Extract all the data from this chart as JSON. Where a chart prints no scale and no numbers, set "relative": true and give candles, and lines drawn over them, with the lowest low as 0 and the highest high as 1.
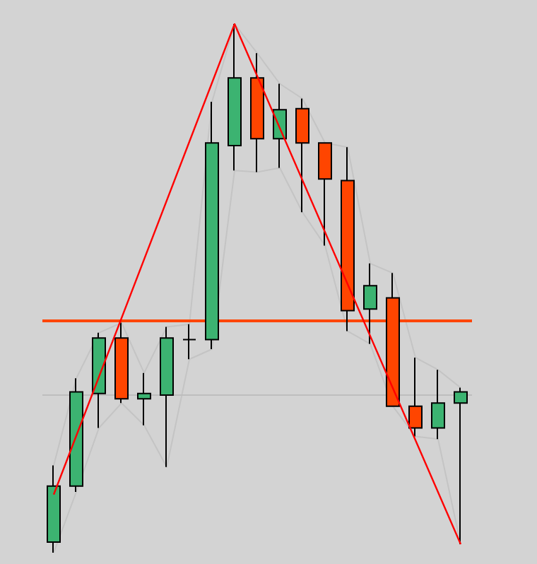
{
  "chart_data": {
    "type": "candlestick",
    "relative": true,
    "grid": false,
    "categories": [
      null,
      null,
      null,
      null,
      null,
      null,
      null,
      null,
      null,
      null,
      null,
      null,
      null,
      null,
      null,
      null,
      null,
      null,
      null
    ],
    "ohlc": [
      [
        0.02,
        0.165,
        0,
        0.126
      ],
      [
        0.126,
        0.33,
        0.115,
        0.304
      ],
      [
        0.301,
        0.416,
        0.236,
        0.406
      ],
      [
        0.406,
        0.435,
        0.283,
        0.291
      ],
      [
        0.291,
        0.34,
        0.241,
        0.301
      ],
      [
        0.298,
        0.427,
        0.162,
        0.406
      ],
      [
        0.403,
        0.432,
        0.366,
        0.403
      ],
      [
        0.403,
        0.853,
        0.385,
        0.775
      ],
      [
        0.77,
        1,
        0.723,
        0.898
      ],
      [
        0.898,
        0.945,
        0.72,
        0.783
      ],
      [
        0.783,
        0.887,
        0.728,
        0.838
      ],
      [
        0.84,
        0.859,
        0.644,
        0.775
      ],
      [
        0.775,
        0.775,
        0.581,
        0.707
      ],
      [
        0.704,
        0.767,
        0.419,
        0.458
      ],
      [
        0.461,
        0.547,
        0.395,
        0.505
      ],
      [
        0.482,
        0.529,
        0.277,
        0.277
      ],
      [
        0.277,
        0.369,
        0.22,
        0.236
      ],
      [
        0.236,
        0.346,
        0.215,
        0.283
      ],
      [
        0.283,
        0.312,
        0.016,
        0.304
      ]
    ],
    "colors": [
      "#3cb371",
      "#3cb371",
      "#3cb371",
      "#ff4500",
      "#3cb371",
      "#3cb371",
      "#000000",
      "#3cb371",
      "#3cb371",
      "#ff4500",
      "#3cb371",
      "#ff4500",
      "#ff4500",
      "#ff4500",
      "#3cb371",
      "#ff4500",
      "#ff4500",
      "#3cb371",
      "#3cb371"
    ],
    "series": [
      {
        "type": "line",
        "color": "#c4c4c4",
        "values": [
          0.165,
          0.33,
          0.416,
          0.435,
          0.34,
          0.427,
          0.432,
          0.853,
          1,
          0.945,
          0.887,
          0.859,
          0.775,
          0.767,
          0.547,
          0.529,
          0.369,
          0.346,
          0.312
        ]
      },
      {
        "type": "line",
        "color": "#c4c4c4",
        "values": [
          0,
          0.115,
          0.236,
          0.283,
          0.241,
          0.162,
          0.366,
          0.385,
          0.723,
          0.72,
          0.728,
          0.644,
          0.581,
          0.419,
          0.395,
          0.277,
          0.22,
          0.215,
          0.016
        ]
      },
      {
        "type": "line",
        "color": "#ff0000",
        "values": [
          0.11,
          null,
          null,
          null,
          null,
          null,
          null,
          null,
          1,
          null,
          null,
          null,
          null,
          null,
          null,
          null,
          null,
          null,
          0.016
        ]
      }
    ],
    "ref_lines": [
      {
        "axis": "y",
        "value": 0.437,
        "color": "#ff4500"
      },
      {
        "axis": "y",
        "value": 0.298,
        "color": "#bdbdbd"
      }
    ]
  }
}
